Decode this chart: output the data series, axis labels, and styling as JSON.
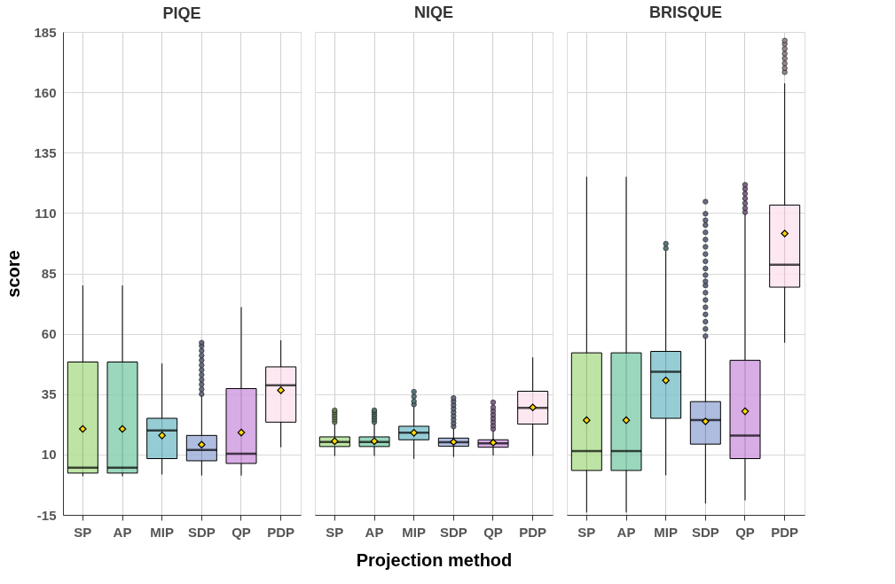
{
  "chart_data": [
    {
      "type": "box",
      "title": "PIQE",
      "ylabel": "score",
      "categories": [
        "SP",
        "AP",
        "MIP",
        "SDP",
        "QP",
        "PDP"
      ],
      "colors": [
        "#b3df95",
        "#88d0b0",
        "#84c4cc",
        "#a0b0da",
        "#d19ee0",
        "#fde4f0"
      ],
      "boxes": [
        {
          "low": 1,
          "q1": 2.3,
          "median": 4.5,
          "q3": 48.3,
          "high": 80,
          "mean": 20.6
        },
        {
          "low": 1,
          "q1": 2.3,
          "median": 4.5,
          "q3": 48.3,
          "high": 80,
          "mean": 20.6
        },
        {
          "low": 1.7,
          "q1": 8.3,
          "median": 20,
          "q3": 25,
          "high": 47.7,
          "mean": 17.9
        },
        {
          "low": 1.3,
          "q1": 7.4,
          "median": 11.9,
          "q3": 17.9,
          "high": 34.3,
          "mean": 14.1,
          "outliers": [
            35,
            37,
            39,
            41,
            43,
            45,
            47,
            49,
            51,
            53,
            55,
            56.3
          ]
        },
        {
          "low": 1.3,
          "q1": 6.3,
          "median": 10.3,
          "q3": 37.3,
          "high": 71,
          "mean": 19.1
        },
        {
          "low": 13,
          "q1": 23.4,
          "median": 38.7,
          "q3": 46.3,
          "high": 57.3,
          "mean": 36.6
        }
      ],
      "ylim": [
        -15,
        185
      ],
      "yticks": [
        -15,
        10,
        35,
        60,
        85,
        110,
        135,
        160,
        185
      ],
      "grid": true,
      "marker": "diamond"
    },
    {
      "type": "box",
      "title": "NIQE",
      "xlabel": "Projection method",
      "categories": [
        "SP",
        "AP",
        "MIP",
        "SDP",
        "QP",
        "PDP"
      ],
      "colors": [
        "#b3df95",
        "#88d0b0",
        "#84c4cc",
        "#a0b0da",
        "#d19ee0",
        "#fde4f0"
      ],
      "boxes": [
        {
          "low": 9.4,
          "q1": 13.3,
          "median": 15.2,
          "q3": 17.3,
          "high": 22.8,
          "mean": 15.5,
          "outliers": [
            23.4,
            24.5,
            25.5,
            26.5,
            27.5,
            28.3
          ]
        },
        {
          "low": 9.4,
          "q1": 13.3,
          "median": 15.2,
          "q3": 17.3,
          "high": 22.8,
          "mean": 15.5,
          "outliers": [
            23.4,
            24.5,
            25.5,
            26.5,
            27.5,
            28.3
          ]
        },
        {
          "low": 8.2,
          "q1": 16.1,
          "median": 19,
          "q3": 21.7,
          "high": 30.1,
          "mean": 19,
          "outliers": [
            30.7,
            32,
            34,
            36
          ]
        },
        {
          "low": 9,
          "q1": 13.4,
          "median": 15.1,
          "q3": 16.8,
          "high": 21,
          "mean": 15.2,
          "outliers": [
            21.6,
            23,
            24.5,
            26,
            27.5,
            29,
            30.5,
            32,
            33.4
          ]
        },
        {
          "low": 9.6,
          "q1": 13,
          "median": 14.6,
          "q3": 16.1,
          "high": 20,
          "mean": 14.9,
          "outliers": [
            20.6,
            22,
            23.5,
            25,
            26.5,
            28,
            29.5,
            31.6
          ]
        },
        {
          "low": 9.4,
          "q1": 22.6,
          "median": 29.3,
          "q3": 36.2,
          "high": 50.2,
          "mean": 29.5
        }
      ],
      "ylim": [
        -15,
        185
      ],
      "yticks": [
        -15,
        10,
        35,
        60,
        85,
        110,
        135,
        160,
        185
      ],
      "grid": true,
      "marker": "diamond",
      "tick_labels": "x"
    },
    {
      "type": "box",
      "title": "BRISQUE",
      "categories": [
        "SP",
        "AP",
        "MIP",
        "SDP",
        "QP",
        "PDP"
      ],
      "colors": [
        "#b3df95",
        "#88d0b0",
        "#84c4cc",
        "#a0b0da",
        "#d19ee0",
        "#fde4f0"
      ],
      "boxes": [
        {
          "low": -14,
          "q1": 3.4,
          "median": 11.4,
          "q3": 52.1,
          "high": 125,
          "mean": 24.2
        },
        {
          "low": -14,
          "q1": 3.4,
          "median": 11.4,
          "q3": 52.1,
          "high": 125,
          "mean": 24.2
        },
        {
          "low": 1.4,
          "q1": 25,
          "median": 44.3,
          "q3": 52.7,
          "high": 94.3,
          "mean": 40.7,
          "outliers": [
            95.4,
            97.3
          ]
        },
        {
          "low": -10.3,
          "q1": 14.3,
          "median": 24.3,
          "q3": 31.9,
          "high": 58.3,
          "mean": 23.7,
          "outliers": [
            59,
            62,
            65,
            68,
            71,
            74,
            77,
            80,
            81.7,
            84.3,
            87,
            90,
            93,
            96,
            99,
            102,
            105,
            107,
            109.7,
            114.7
          ]
        },
        {
          "low": -9,
          "q1": 8.3,
          "median": 17.8,
          "q3": 49,
          "high": 109.7,
          "mean": 27.9,
          "outliers": [
            110.3,
            112,
            114,
            116,
            118,
            120,
            121.7
          ]
        },
        {
          "low": 56.3,
          "q1": 79.3,
          "median": 88.6,
          "q3": 113.3,
          "high": 163.7,
          "mean": 101.5,
          "outliers": [
            168.3,
            170,
            172,
            174,
            176,
            178,
            180,
            181.4
          ]
        }
      ],
      "ylim": [
        -15,
        185
      ],
      "yticks": [
        -15,
        10,
        35,
        60,
        85,
        110,
        135,
        160,
        185
      ],
      "grid": true,
      "marker": "diamond",
      "tick_labels": "x"
    }
  ]
}
